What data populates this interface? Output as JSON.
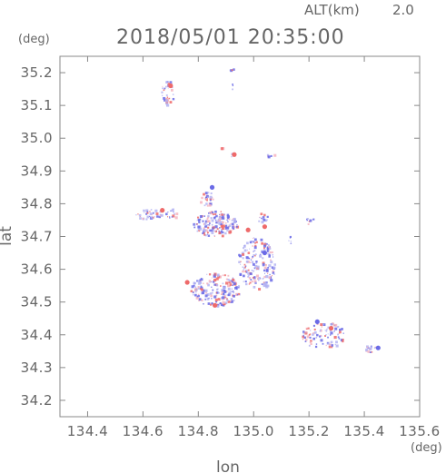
{
  "header": {
    "altitude_label": "ALT(km)",
    "altitude_value": "2.0",
    "timestamp": "2018/05/01 20:35:00"
  },
  "chart_data": {
    "type": "scatter",
    "title": "2018/05/01 20:35:00",
    "xlabel": "lon",
    "ylabel": "lat",
    "x_unit": "(deg)",
    "y_unit": "(deg)",
    "xlim": [
      134.3,
      135.6
    ],
    "ylim": [
      34.15,
      35.25
    ],
    "x_ticks": [
      "134.4",
      "134.6",
      "134.8",
      "135.0",
      "135.2",
      "135.4",
      "135.6"
    ],
    "y_ticks": [
      "34.2",
      "34.3",
      "34.4",
      "34.5",
      "34.6",
      "34.7",
      "34.8",
      "34.9",
      "35.0",
      "35.1",
      "35.2"
    ],
    "grid": false,
    "colors": {
      "blue": "#6a6ae6",
      "red": "#ee6a6a",
      "pink": "#f4b4c0",
      "lightblue": "#b4b4f2",
      "axis": "#888888"
    },
    "clusters": [
      {
        "lon": 134.69,
        "lat": 35.14,
        "rlon": 0.025,
        "rlat": 0.04,
        "count": 36
      },
      {
        "lon": 134.92,
        "lat": 35.21,
        "rlon": 0.008,
        "rlat": 0.006,
        "count": 4
      },
      {
        "lon": 134.92,
        "lat": 35.16,
        "rlon": 0.01,
        "rlat": 0.01,
        "count": 3
      },
      {
        "lon": 134.88,
        "lat": 34.97,
        "rlon": 0.006,
        "rlat": 0.005,
        "count": 2
      },
      {
        "lon": 134.92,
        "lat": 34.95,
        "rlon": 0.006,
        "rlat": 0.006,
        "count": 3
      },
      {
        "lon": 135.06,
        "lat": 34.95,
        "rlon": 0.02,
        "rlat": 0.01,
        "count": 6
      },
      {
        "lon": 134.62,
        "lat": 34.77,
        "rlon": 0.05,
        "rlat": 0.015,
        "count": 34
      },
      {
        "lon": 134.7,
        "lat": 34.77,
        "rlon": 0.02,
        "rlat": 0.02,
        "count": 14
      },
      {
        "lon": 134.83,
        "lat": 34.82,
        "rlon": 0.03,
        "rlat": 0.025,
        "count": 26
      },
      {
        "lon": 134.86,
        "lat": 34.74,
        "rlon": 0.08,
        "rlat": 0.04,
        "count": 170
      },
      {
        "lon": 135.03,
        "lat": 34.76,
        "rlon": 0.02,
        "rlat": 0.015,
        "count": 14
      },
      {
        "lon": 135.2,
        "lat": 34.75,
        "rlon": 0.015,
        "rlat": 0.015,
        "count": 8
      },
      {
        "lon": 135.01,
        "lat": 34.62,
        "rlon": 0.07,
        "rlat": 0.08,
        "count": 180
      },
      {
        "lon": 135.13,
        "lat": 34.69,
        "rlon": 0.01,
        "rlat": 0.015,
        "count": 6
      },
      {
        "lon": 134.86,
        "lat": 34.54,
        "rlon": 0.09,
        "rlat": 0.05,
        "count": 190
      },
      {
        "lon": 135.04,
        "lat": 34.56,
        "rlon": 0.01,
        "rlat": 0.01,
        "count": 4
      },
      {
        "lon": 135.25,
        "lat": 34.4,
        "rlon": 0.08,
        "rlat": 0.04,
        "count": 95
      },
      {
        "lon": 135.42,
        "lat": 34.36,
        "rlon": 0.02,
        "rlat": 0.012,
        "count": 14
      }
    ],
    "highlights": [
      {
        "lon": 134.7,
        "lat": 35.16,
        "color": "red"
      },
      {
        "lon": 134.67,
        "lat": 34.78,
        "color": "red"
      },
      {
        "lon": 134.93,
        "lat": 34.95,
        "color": "red"
      },
      {
        "lon": 134.85,
        "lat": 34.85,
        "color": "blue"
      },
      {
        "lon": 134.76,
        "lat": 34.56,
        "color": "red"
      },
      {
        "lon": 134.86,
        "lat": 34.49,
        "color": "red"
      },
      {
        "lon": 134.98,
        "lat": 34.72,
        "color": "red"
      },
      {
        "lon": 135.04,
        "lat": 34.65,
        "color": "blue"
      },
      {
        "lon": 135.45,
        "lat": 34.36,
        "color": "blue"
      },
      {
        "lon": 135.28,
        "lat": 34.42,
        "color": "red"
      },
      {
        "lon": 135.23,
        "lat": 34.44,
        "color": "blue"
      },
      {
        "lon": 135.04,
        "lat": 34.73,
        "color": "red"
      }
    ]
  }
}
